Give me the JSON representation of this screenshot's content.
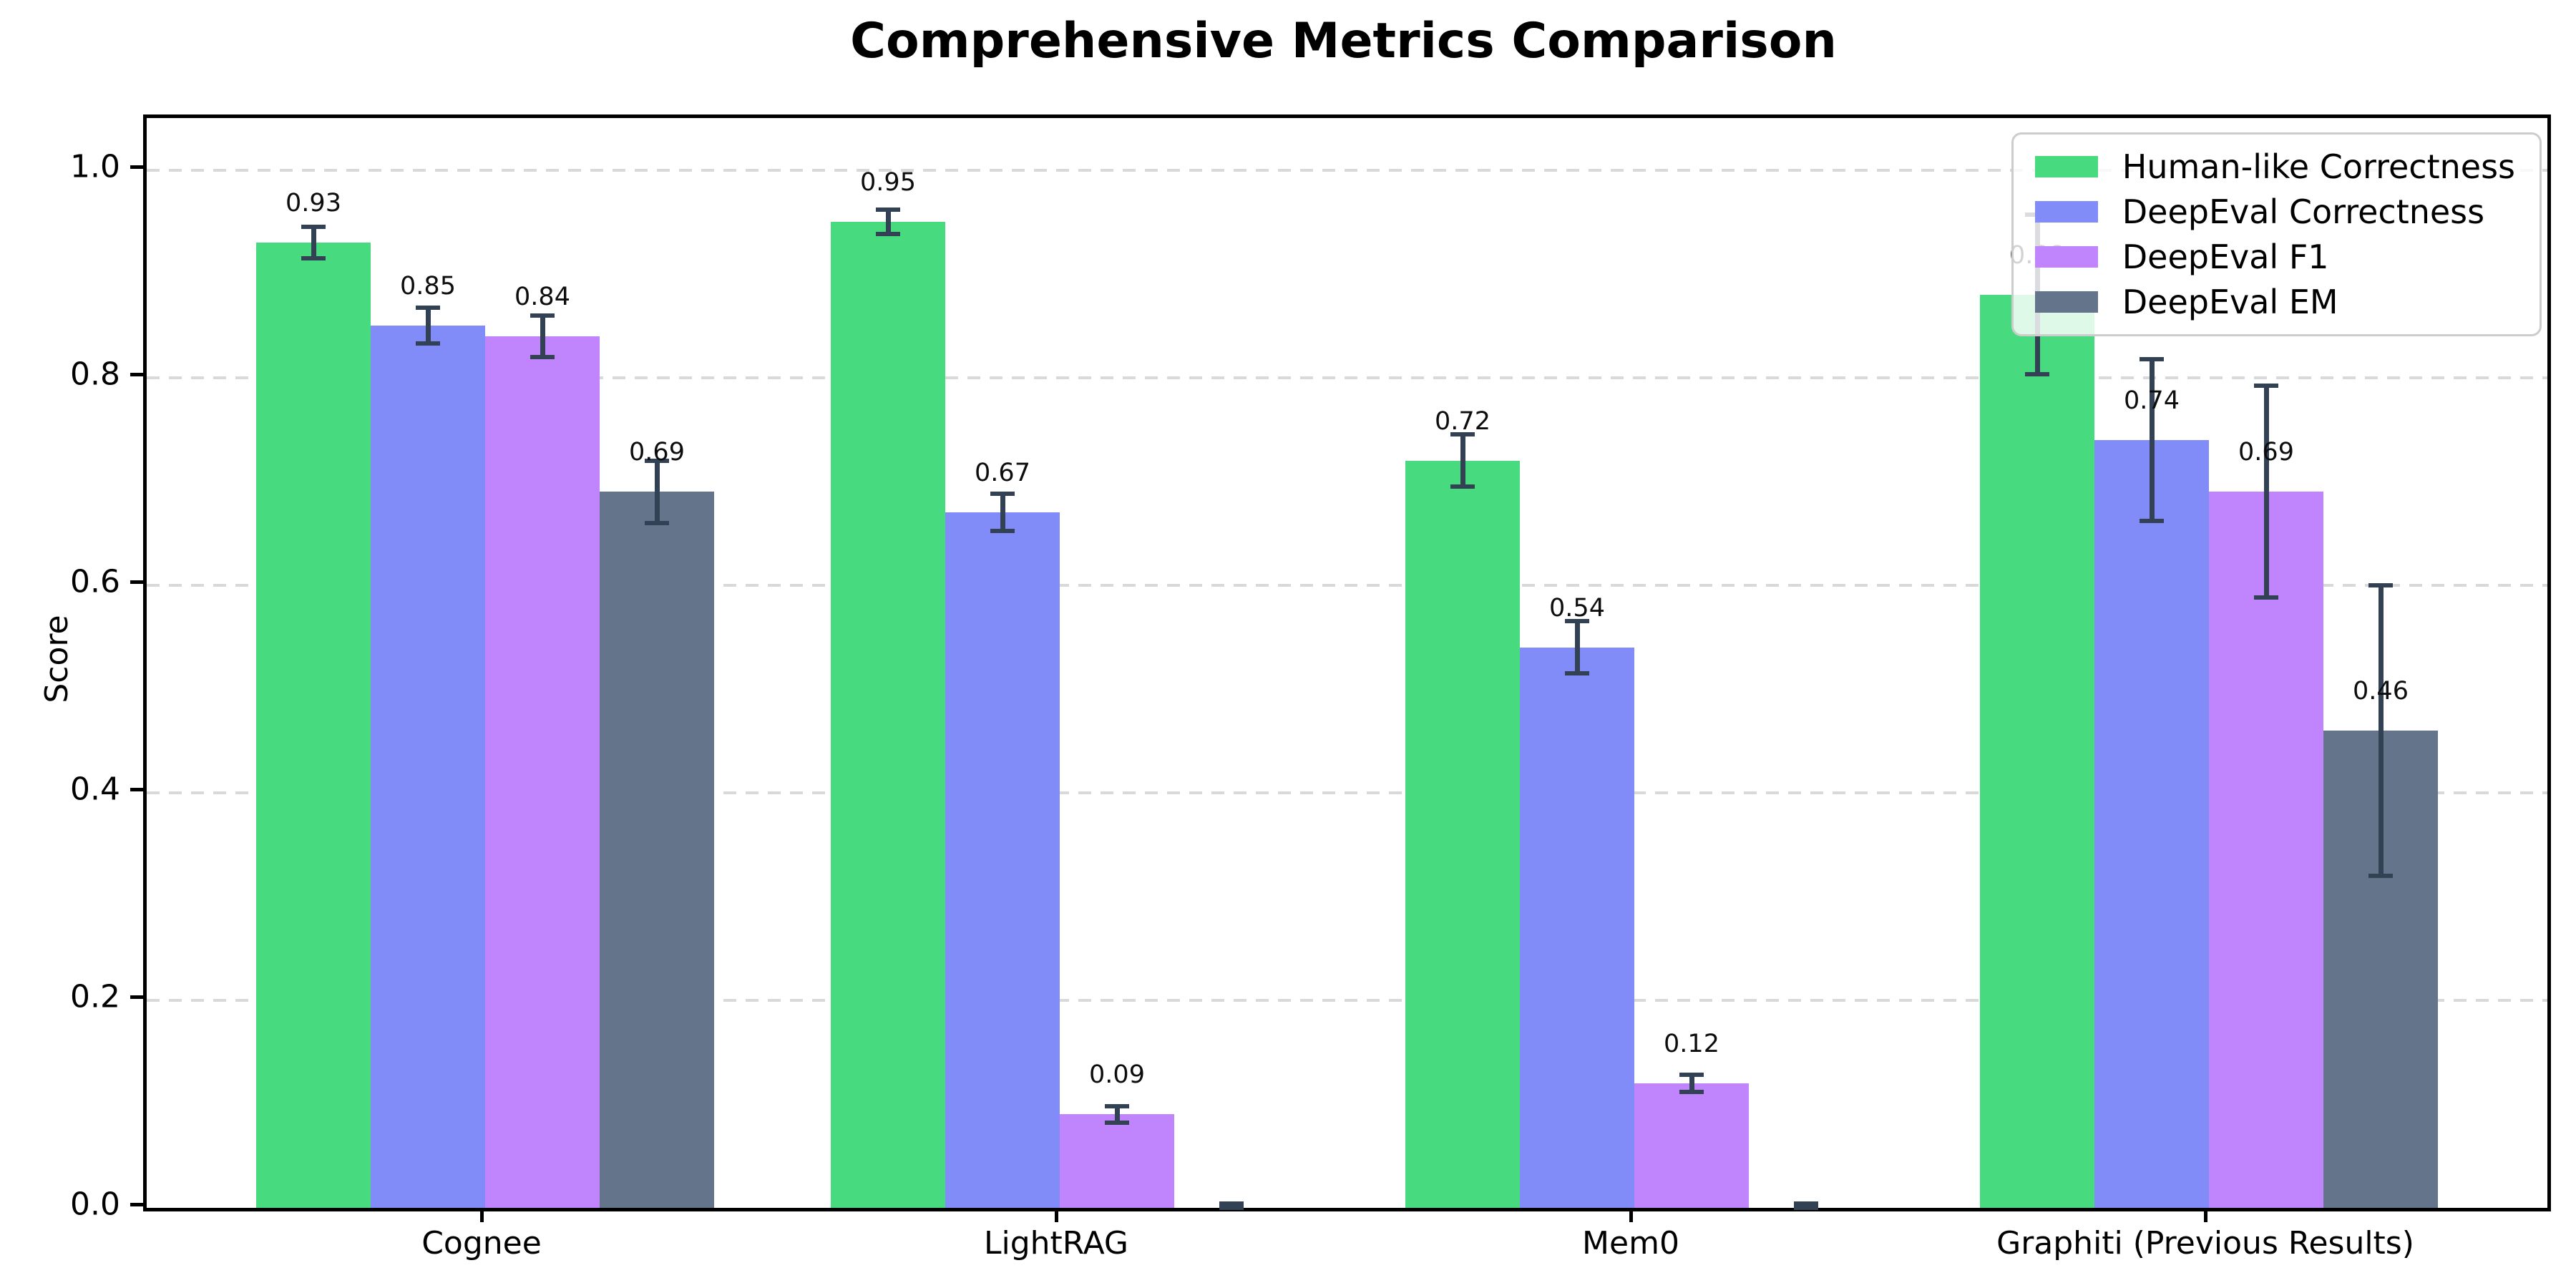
{
  "chart_data": {
    "type": "bar",
    "title": "Comprehensive Metrics Comparison",
    "ylabel": "Score",
    "xlabel": "",
    "categories": [
      "Cognee",
      "LightRAG",
      "Mem0",
      "Graphiti (Previous Results)"
    ],
    "series": [
      {
        "name": "Human-like Correctness",
        "color": "#47da7e",
        "values": [
          0.93,
          0.95,
          0.72,
          0.88
        ],
        "errors": [
          0.015,
          0.012,
          0.025,
          0.077
        ],
        "labels": [
          "0.93",
          "0.95",
          "0.72",
          "0.88"
        ]
      },
      {
        "name": "DeepEval Correctness",
        "color": "#818cf8",
        "values": [
          0.85,
          0.67,
          0.54,
          0.74
        ],
        "errors": [
          0.017,
          0.018,
          0.025,
          0.078
        ],
        "labels": [
          "0.85",
          "0.67",
          "0.54",
          "0.74"
        ]
      },
      {
        "name": "DeepEval F1",
        "color": "#c084fc",
        "values": [
          0.84,
          0.09,
          0.12,
          0.69
        ],
        "errors": [
          0.02,
          0.008,
          0.008,
          0.102
        ],
        "labels": [
          "0.84",
          "0.09",
          "0.12",
          "0.69"
        ]
      },
      {
        "name": "DeepEval EM",
        "color": "#64748b",
        "values": [
          0.69,
          0.0,
          0.0,
          0.46
        ],
        "errors": [
          0.03,
          0.004,
          0.004,
          0.14
        ],
        "labels": [
          "0.69",
          "",
          "",
          "0.46"
        ]
      }
    ],
    "ytick_labels": [
      "0.0",
      "0.2",
      "0.4",
      "0.6",
      "0.8",
      "1.0"
    ],
    "yticks": [
      0.0,
      0.2,
      0.4,
      0.6,
      0.8,
      1.0
    ],
    "ylim": [
      0,
      1.05
    ],
    "grid": "horizontal-dashed",
    "legend_position": "upper-right",
    "colors": {
      "error_bar": "#334155",
      "grid": "#d9d9d9",
      "axis": "#000000",
      "background": "#ffffff"
    }
  }
}
